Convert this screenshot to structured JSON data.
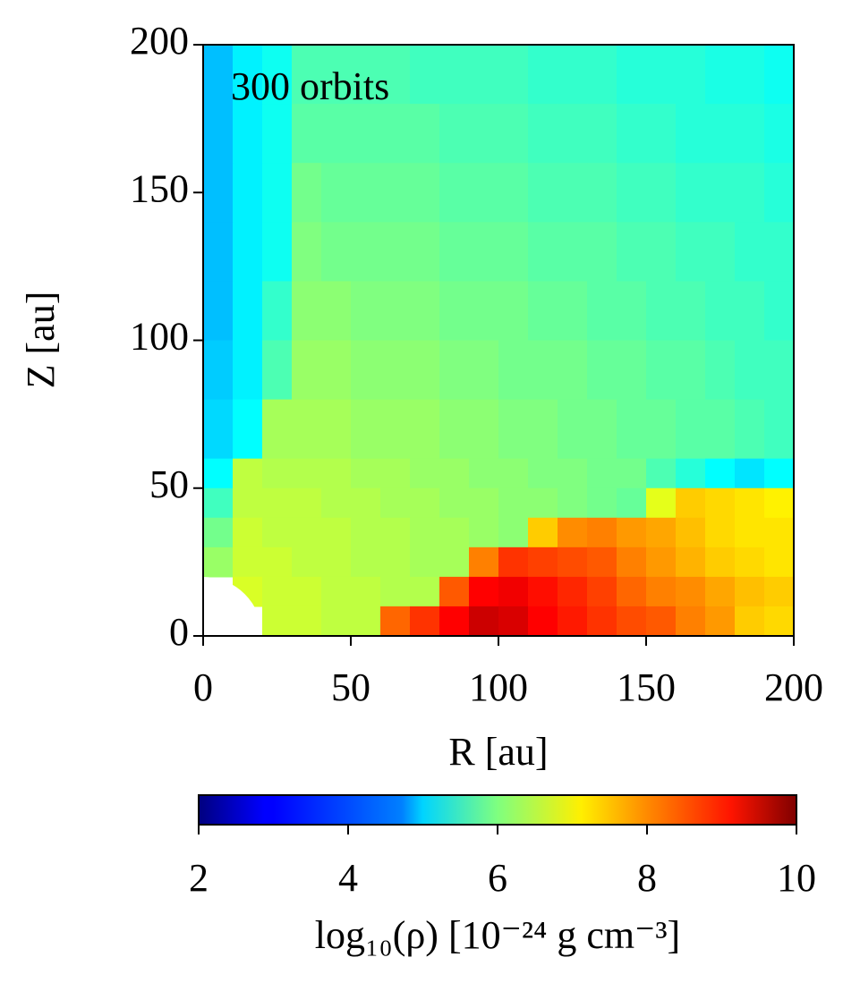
{
  "chart_data": {
    "type": "heatmap",
    "annotation": "300 orbits",
    "xlabel": "R [au]",
    "ylabel": "Z [au]",
    "colorbar_label": "log₁₀(ρ) [10⁻²⁴ g cm⁻³]",
    "colormap": "jet",
    "xlim": [
      0,
      200
    ],
    "ylim": [
      0,
      200
    ],
    "xticks": [
      0,
      50,
      100,
      150,
      200
    ],
    "yticks": [
      0,
      50,
      100,
      150,
      200
    ],
    "zlim": [
      2,
      10
    ],
    "zticks": [
      2,
      4,
      6,
      8,
      10
    ],
    "x": [
      5,
      15,
      25,
      35,
      45,
      55,
      65,
      75,
      85,
      95,
      105,
      115,
      125,
      135,
      145,
      155,
      165,
      175,
      185,
      195
    ],
    "y": [
      190,
      170,
      150,
      130,
      110,
      90,
      70,
      55,
      45,
      35,
      25,
      15,
      5
    ],
    "z": [
      [
        4.5,
        4.9,
        5.1,
        5.6,
        5.6,
        5.6,
        5.6,
        5.5,
        5.5,
        5.5,
        5.5,
        5.4,
        5.4,
        5.4,
        5.3,
        5.3,
        5.3,
        5.2,
        5.2,
        5.1
      ],
      [
        4.5,
        4.9,
        5.1,
        5.7,
        5.7,
        5.7,
        5.7,
        5.7,
        5.6,
        5.6,
        5.6,
        5.5,
        5.5,
        5.5,
        5.4,
        5.4,
        5.3,
        5.3,
        5.3,
        5.2
      ],
      [
        4.5,
        4.9,
        5.1,
        5.9,
        5.8,
        5.8,
        5.8,
        5.8,
        5.7,
        5.7,
        5.7,
        5.6,
        5.6,
        5.6,
        5.5,
        5.5,
        5.4,
        5.4,
        5.4,
        5.3
      ],
      [
        4.5,
        4.9,
        5.1,
        6.0,
        5.9,
        5.9,
        5.9,
        5.9,
        5.8,
        5.8,
        5.8,
        5.7,
        5.7,
        5.7,
        5.6,
        5.6,
        5.5,
        5.5,
        5.4,
        5.4
      ],
      [
        4.5,
        4.9,
        5.4,
        6.1,
        6.1,
        6.0,
        6.0,
        6.0,
        5.9,
        5.9,
        5.9,
        5.8,
        5.8,
        5.7,
        5.7,
        5.6,
        5.6,
        5.5,
        5.5,
        5.4
      ],
      [
        4.6,
        4.9,
        5.6,
        6.2,
        6.2,
        6.1,
        6.1,
        6.1,
        6.0,
        6.0,
        5.9,
        5.9,
        5.9,
        5.8,
        5.8,
        5.7,
        5.7,
        5.6,
        5.5,
        5.5
      ],
      [
        4.7,
        5.0,
        6.3,
        6.3,
        6.3,
        6.2,
        6.2,
        6.2,
        6.1,
        6.1,
        6.0,
        6.0,
        5.9,
        5.9,
        5.8,
        5.8,
        5.7,
        5.7,
        5.6,
        5.5
      ],
      [
        5.0,
        6.5,
        6.4,
        6.4,
        6.4,
        6.3,
        6.3,
        6.2,
        6.2,
        6.1,
        6.1,
        6.0,
        6.0,
        5.9,
        5.9,
        5.6,
        5.3,
        5.0,
        4.8,
        5.0
      ],
      [
        5.5,
        6.5,
        6.5,
        6.5,
        6.4,
        6.4,
        6.3,
        6.3,
        6.2,
        6.2,
        6.1,
        6.1,
        6.0,
        5.9,
        5.8,
        6.8,
        7.4,
        7.3,
        7.2,
        7.1
      ],
      [
        5.9,
        6.6,
        6.5,
        6.5,
        6.5,
        6.4,
        6.4,
        6.3,
        6.3,
        6.2,
        6.1,
        7.4,
        7.9,
        8.0,
        7.8,
        7.7,
        7.5,
        7.3,
        7.2,
        7.2
      ],
      [
        6.2,
        6.6,
        6.6,
        6.5,
        6.5,
        6.4,
        6.4,
        6.3,
        6.3,
        8.0,
        8.6,
        8.5,
        8.4,
        8.3,
        8.0,
        7.8,
        7.6,
        7.4,
        7.3,
        7.2
      ],
      [
        null,
        6.7,
        6.6,
        6.6,
        6.5,
        6.5,
        6.4,
        6.4,
        8.3,
        9.0,
        9.1,
        8.9,
        8.7,
        8.5,
        8.2,
        8.0,
        7.9,
        7.7,
        7.5,
        7.4
      ],
      [
        null,
        null,
        6.6,
        6.6,
        6.5,
        6.5,
        8.2,
        8.6,
        9.0,
        9.4,
        9.3,
        9.0,
        8.8,
        8.6,
        8.4,
        8.3,
        8.0,
        7.8,
        7.4,
        7.3
      ]
    ]
  }
}
